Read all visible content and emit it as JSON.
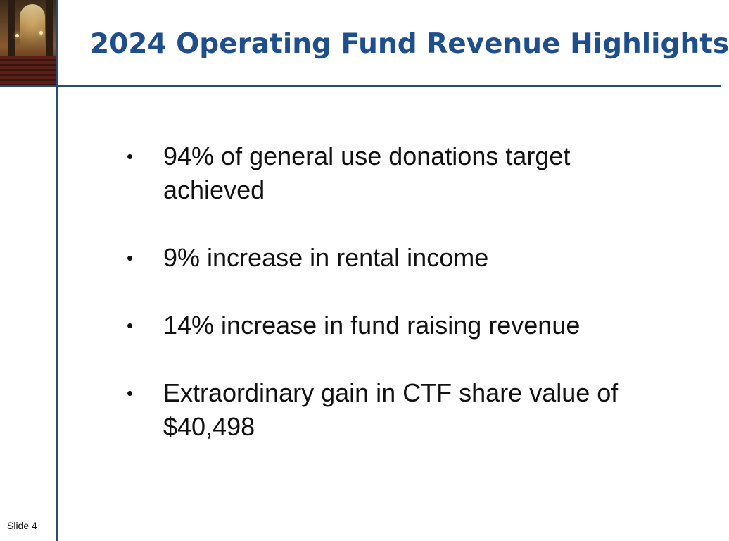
{
  "slide": {
    "title": "2024 Operating Fund Revenue Highlights",
    "bullets": [
      {
        "marker": "•",
        "text": "94% of general use donations target achieved"
      },
      {
        "marker": "•",
        "text": "9% increase in rental income"
      },
      {
        "marker": "•",
        "text": "14% increase in fund raising revenue"
      },
      {
        "marker": "•",
        "text": "Extraordinary gain in CTF share value of $40,498"
      }
    ],
    "footer": "Slide 4"
  },
  "colors": {
    "title": "#1f4e8c",
    "rules": "#2a4a7c",
    "text": "#111111",
    "background": "#ffffff"
  }
}
